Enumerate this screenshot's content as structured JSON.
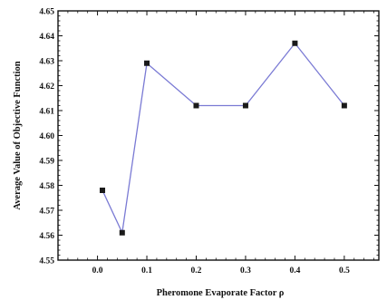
{
  "chart_data": {
    "type": "line",
    "title": "",
    "xlabel": "Pheromone Evaporate  Factor ρ",
    "ylabel": "Average Value of Objective Function",
    "x_categories": [
      "0.0",
      "0.1",
      "0.2",
      "0.3",
      "0.4",
      "0.5"
    ],
    "x_ticks": [
      0.0,
      0.1,
      0.2,
      0.3,
      0.4,
      0.5
    ],
    "xlim": [
      -0.08,
      0.57
    ],
    "ylim": [
      4.55,
      4.65
    ],
    "y_ticks": [
      "4.55",
      "4.56",
      "4.57",
      "4.58",
      "4.59",
      "4.60",
      "4.61",
      "4.62",
      "4.63",
      "4.64",
      "4.65"
    ],
    "grid": false,
    "series": [
      {
        "x": [
          0.01,
          0.05,
          0.1,
          0.2,
          0.3,
          0.4,
          0.5
        ],
        "y": [
          4.578,
          4.561,
          4.629,
          4.612,
          4.612,
          4.637,
          4.612
        ],
        "color": "#7a7ad4",
        "marker": "square",
        "marker_color": "#1a1a1a"
      }
    ]
  }
}
